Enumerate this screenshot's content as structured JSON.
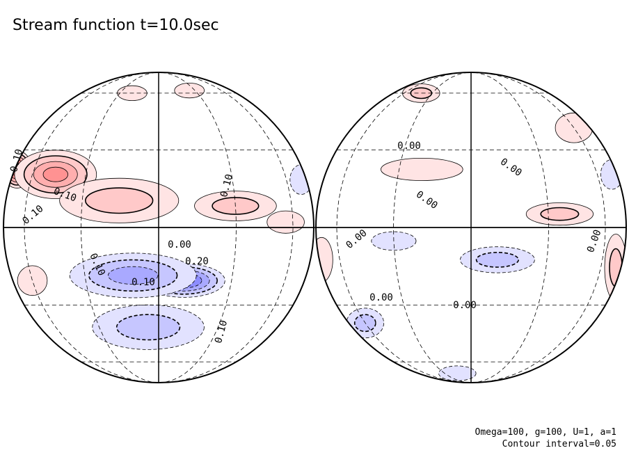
{
  "title": "Stream function t=10.0sec",
  "params": "Omega=100, g=100, U=1, a=1",
  "contour_interval_label": "Contour interval=0.05",
  "chart_data": {
    "type": "contour",
    "projection": "orthographic (two hemispheres)",
    "variable": "stream function",
    "time_sec": 10.0,
    "contour_interval": 0.05,
    "colors": {
      "positive": "#f04040",
      "negative": "#3c3cf0",
      "zero": "#ffffff"
    },
    "hemispheres": [
      {
        "name": "left",
        "labels": [
          "0.10",
          "0.10",
          "0.10",
          "0.10",
          "0.00",
          "0.20",
          "0.10",
          "0.10",
          "0.10"
        ],
        "blobs": [
          {
            "lon": -80,
            "lat": 22,
            "value": 0.32,
            "rx": 0.08,
            "ry": 0.1
          },
          {
            "lon": -45,
            "lat": 20,
            "value": 0.22,
            "rx": 0.22,
            "ry": 0.13
          },
          {
            "lon": -15,
            "lat": 10,
            "value": 0.15,
            "rx": 0.32,
            "ry": 0.12
          },
          {
            "lon": 30,
            "lat": 8,
            "value": 0.1,
            "rx": 0.22,
            "ry": 0.08
          },
          {
            "lon": 55,
            "lat": 2,
            "value": 0.08,
            "rx": 0.1,
            "ry": 0.06
          },
          {
            "lon": -20,
            "lat": 60,
            "value": 0.06,
            "rx": 0.08,
            "ry": 0.04
          },
          {
            "lon": 25,
            "lat": 62,
            "value": 0.06,
            "rx": 0.08,
            "ry": 0.04
          },
          {
            "lon": 10,
            "lat": -20,
            "value": -0.3,
            "rx": 0.22,
            "ry": 0.09
          },
          {
            "lon": -10,
            "lat": -18,
            "value": -0.18,
            "rx": 0.34,
            "ry": 0.12
          },
          {
            "lon": -5,
            "lat": -40,
            "value": -0.12,
            "rx": 0.3,
            "ry": 0.12
          },
          {
            "lon": -60,
            "lat": -20,
            "value": 0.03,
            "rx": 0.08,
            "ry": 0.08
          },
          {
            "lon": 75,
            "lat": 18,
            "value": -0.05,
            "rx": 0.06,
            "ry": 0.08
          }
        ]
      },
      {
        "name": "right",
        "labels": [
          "0.00",
          "0.00",
          "0.00",
          "0.00",
          "0.00",
          "0.00",
          "0.00"
        ],
        "blobs": [
          {
            "lon": -40,
            "lat": 60,
            "value": 0.12,
            "rx": 0.1,
            "ry": 0.05
          },
          {
            "lon": 60,
            "lat": 40,
            "value": 0.05,
            "rx": 0.1,
            "ry": 0.08
          },
          {
            "lon": -20,
            "lat": 22,
            "value": 0.05,
            "rx": 0.22,
            "ry": 0.06
          },
          {
            "lon": 35,
            "lat": 5,
            "value": 0.1,
            "rx": 0.18,
            "ry": 0.06
          },
          {
            "lon": 75,
            "lat": -15,
            "value": 0.12,
            "rx": 0.06,
            "ry": 0.18
          },
          {
            "lon": -80,
            "lat": -12,
            "value": 0.08,
            "rx": 0.06,
            "ry": 0.12
          },
          {
            "lon": 10,
            "lat": -12,
            "value": -0.1,
            "rx": 0.2,
            "ry": 0.07
          },
          {
            "lon": -60,
            "lat": -38,
            "value": -0.1,
            "rx": 0.1,
            "ry": 0.08
          },
          {
            "lon": 75,
            "lat": 20,
            "value": -0.05,
            "rx": 0.06,
            "ry": 0.08
          },
          {
            "lon": -15,
            "lat": -70,
            "value": -0.06,
            "rx": 0.1,
            "ry": 0.04
          },
          {
            "lon": -30,
            "lat": -5,
            "value": -0.04,
            "rx": 0.12,
            "ry": 0.05
          }
        ]
      }
    ]
  }
}
